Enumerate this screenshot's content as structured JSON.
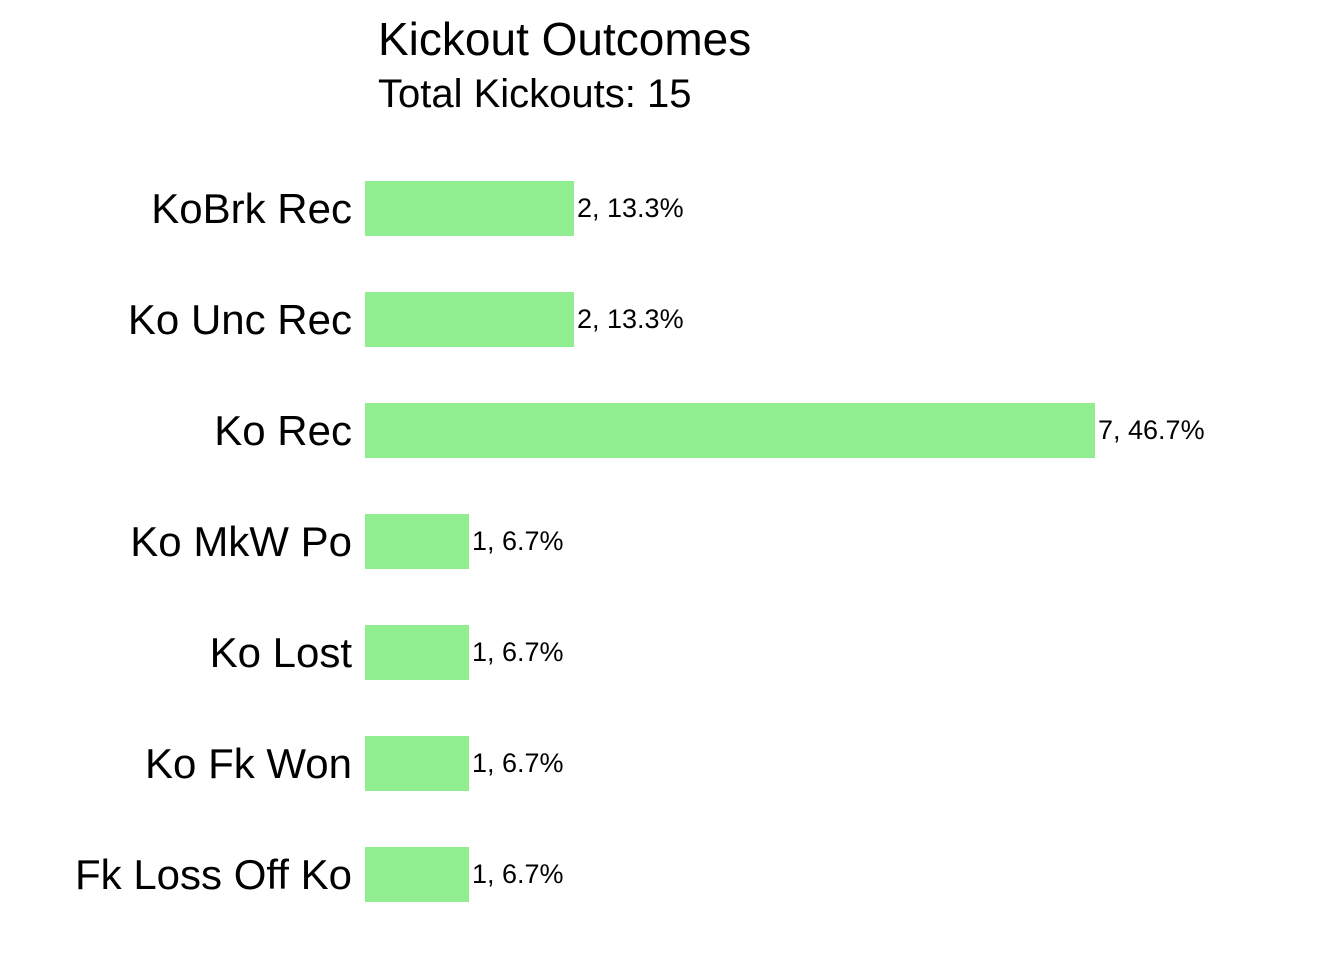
{
  "chart_data": {
    "type": "bar",
    "orientation": "horizontal",
    "title": "Kickout Outcomes",
    "subtitle": "Total Kickouts: 15",
    "total_kickouts": 15,
    "categories": [
      "KoBrk Rec",
      "Ko Unc Rec",
      "Ko Rec",
      "Ko MkW Po",
      "Ko Lost",
      "Ko Fk Won",
      "Fk Loss Off Ko"
    ],
    "values": [
      2,
      2,
      7,
      1,
      1,
      1,
      1
    ],
    "percentages": [
      13.3,
      13.3,
      46.7,
      6.7,
      6.7,
      6.7,
      6.7
    ],
    "value_labels": [
      "2, 13.3%",
      "2, 13.3%",
      "7, 46.7%",
      "1, 6.7%",
      "1, 6.7%",
      "1, 6.7%",
      "1, 6.7%"
    ],
    "bar_color": "#90EE90",
    "text_color": "#000000",
    "background_color": "#ffffff",
    "xlim": [
      0,
      7
    ],
    "grid": false,
    "legend": "none"
  }
}
